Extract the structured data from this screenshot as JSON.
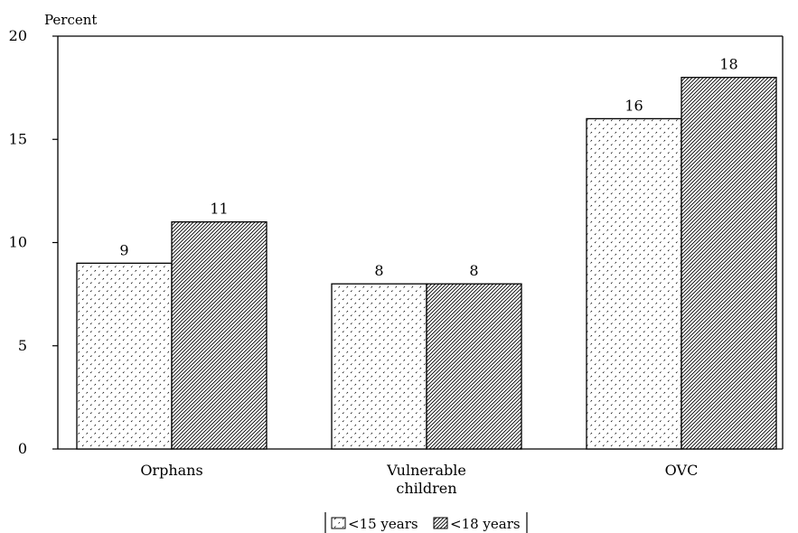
{
  "chart_data": {
    "type": "bar",
    "ylabel": "Percent",
    "ylim": [
      0,
      20
    ],
    "yticks": [
      0,
      5,
      10,
      15,
      20
    ],
    "categories": [
      "Orphans",
      "Vulnerable children",
      "OVC"
    ],
    "category_lines": [
      [
        "Orphans"
      ],
      [
        "Vulnerable",
        "children"
      ],
      [
        "OVC"
      ]
    ],
    "series": [
      {
        "name": "<15 years",
        "values": [
          9,
          8,
          16
        ],
        "pattern": "dotted"
      },
      {
        "name": "<18 years",
        "values": [
          11,
          8,
          18
        ],
        "pattern": "hatched"
      }
    ],
    "data_labels": [
      [
        "9",
        "8",
        "16"
      ],
      [
        "11",
        "8",
        "18"
      ]
    ],
    "grid": false,
    "legend_position": "bottom-center",
    "colors": {
      "bar_fill": "#ffffff",
      "stroke": "#000000"
    }
  }
}
